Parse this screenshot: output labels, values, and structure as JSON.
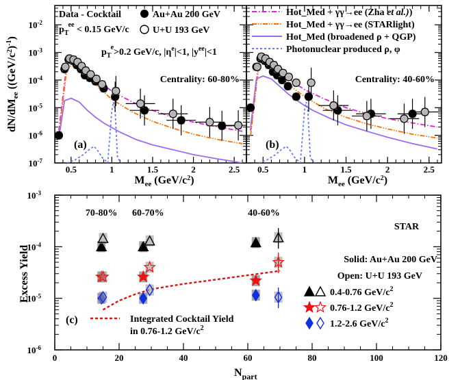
{
  "chart_data": [
    {
      "type": "scatter",
      "panel_label": "(a)",
      "xlabel": "M_ee (GeV/c^2)",
      "ylabel": "dN/dM_ee ((GeV/c^2)^-1)",
      "xlim": [
        0.3,
        2.65
      ],
      "ylim": [
        1e-07,
        0.05
      ],
      "yscale": "log",
      "xticks": [
        0.5,
        1,
        1.5,
        2,
        2.5
      ],
      "xtick_labels": [
        "0.5",
        "1",
        "1.5",
        "2",
        "2.5"
      ],
      "yticks": [
        1e-07,
        1e-06,
        1e-05,
        0.0001,
        0.001,
        0.01
      ],
      "ytick_labels": [
        "10^-7",
        "10^-6",
        "10^-5",
        "10^-4",
        "10^-3",
        "10^-2"
      ],
      "texts": {
        "t1": "Data - Cocktail",
        "t2": "p_T^ee < 0.15 GeV/c",
        "t3": "Au+Au 200 GeV",
        "t4": "U+U 193 GeV",
        "t5": "p_T^e>0.2 GeV/c, |η^e|<1, |y^ee|<1",
        "t6": "Centrality: 60-80%"
      },
      "series": [
        {
          "name": "Au+Au 200 GeV",
          "marker": "filled-circle",
          "x": [
            0.35,
            0.42,
            0.47,
            0.52,
            0.57,
            0.62,
            0.67,
            0.73,
            0.8,
            0.9,
            1.04,
            1.4,
            1.85,
            2.35
          ],
          "y": [
            1e-06,
            0.00025,
            0.00055,
            0.0005,
            0.00035,
            0.00025,
            0.00015,
            0.00012,
            9e-05,
            5e-05,
            2.5e-05,
            8e-06,
            3.5e-06,
            2.2e-06
          ]
        },
        {
          "name": "U+U 193 GeV",
          "marker": "open-circle",
          "x": [
            0.43,
            0.48,
            0.53,
            0.58,
            0.63,
            0.68,
            0.74,
            0.81,
            0.88,
            1.05,
            1.35,
            1.75,
            2.2,
            2.55
          ],
          "y": [
            0.0003,
            0.0006,
            0.00055,
            0.00045,
            0.00032,
            0.00022,
            0.00016,
            0.00011,
            7e-05,
            4e-05,
            1.4e-05,
            6e-06,
            3e-06,
            2.3e-06
          ]
        }
      ],
      "curves": [
        {
          "name": "Hot_Med + γγ→ee (Zha et al.)",
          "color": "#e020e0",
          "dash": "dashdot",
          "x": [
            0.35,
            0.45,
            0.55,
            0.7,
            0.85,
            1.0,
            1.25,
            1.5,
            1.75,
            2.0,
            2.3,
            2.6
          ],
          "y": [
            1.5e-06,
            0.00045,
            0.0005,
            0.0002,
            8e-05,
            4e-05,
            1.6e-05,
            8e-06,
            4.5e-06,
            3e-06,
            2e-06,
            1.4e-06
          ]
        },
        {
          "name": "Hot_Med + γγ→ee (STARlight)",
          "color": "#ff7000",
          "dash": "dashdotdot",
          "x": [
            0.35,
            0.45,
            0.55,
            0.7,
            0.85,
            1.0,
            1.25,
            1.5,
            1.75,
            2.0,
            2.3,
            2.6
          ],
          "y": [
            1e-06,
            0.0003,
            0.00035,
            0.00014,
            5e-05,
            2e-05,
            7e-06,
            3.2e-06,
            1.8e-06,
            1.1e-06,
            7e-07,
            5e-07
          ]
        },
        {
          "name": "Hot_Med (broadened ρ + QGP)",
          "color": "#9b6cf0",
          "dash": "solid",
          "x": [
            0.35,
            0.42,
            0.5,
            0.6,
            0.7,
            0.8,
            0.9,
            1.0,
            1.1,
            1.3,
            1.5,
            1.75,
            2.0,
            2.3,
            2.6
          ],
          "y": [
            8e-07,
            1.8e-05,
            2.2e-05,
            1.6e-05,
            8e-06,
            4.5e-06,
            2.8e-06,
            1.9e-06,
            1.3e-06,
            7e-07,
            4.5e-07,
            3e-07,
            2e-07,
            1.4e-07,
            1e-07
          ]
        },
        {
          "name": "Photonuclear produced ρ, φ",
          "color": "#5c7cf0",
          "dash": "dotted",
          "x": [
            0.45,
            0.55,
            0.65,
            0.72,
            0.78,
            0.82,
            0.88,
            0.95,
            1.0,
            1.02,
            1.04,
            1.07,
            1.12
          ],
          "y": [
            1e-07,
            1.3e-07,
            2e-07,
            3e-07,
            4e-07,
            3e-07,
            1.6e-07,
            1e-07,
            8e-06,
            1.6e-05,
            8e-06,
            1.5e-07,
            1e-07
          ]
        }
      ]
    },
    {
      "type": "scatter",
      "panel_label": "(b)",
      "xlabel": "M_ee (GeV/c^2)",
      "xlim": [
        0.3,
        2.65
      ],
      "ylim": [
        1e-07,
        0.05
      ],
      "yscale": "log",
      "xticks": [
        0.5,
        1,
        1.5,
        2,
        2.5
      ],
      "xtick_labels": [
        "0.5",
        "1",
        "1.5",
        "2",
        "2.5"
      ],
      "texts": {
        "t6": "Centrality: 40-60%"
      },
      "series": [
        {
          "name": "Au+Au 200 GeV",
          "marker": "filled-circle",
          "x": [
            0.35,
            0.42,
            0.47,
            0.52,
            0.57,
            0.62,
            0.67,
            0.73,
            0.8,
            0.9,
            1.05,
            1.4,
            1.8,
            2.3
          ],
          "y": [
            1e-05,
            0.0003,
            0.0006,
            0.0005,
            0.00035,
            0.0002,
            0.00015,
            0.0001,
            6e-05,
            2.5e-05,
            2.5e-05,
            8e-06,
            6e-06,
            6e-06
          ]
        },
        {
          "name": "U+U 193 GeV",
          "marker": "open-circle",
          "x": [
            0.43,
            0.48,
            0.53,
            0.58,
            0.63,
            0.68,
            0.74,
            0.81,
            0.9,
            1.08,
            1.35,
            1.75,
            2.2,
            2.45
          ],
          "y": [
            0.0003,
            0.0007,
            0.0006,
            0.00045,
            0.00035,
            0.00025,
            0.00018,
            0.00013,
            8e-05,
            8e-05,
            1.2e-05,
            5e-06,
            4e-06,
            7e-06
          ]
        }
      ],
      "curves": [
        {
          "name": "Hot_Med + γγ→ee (Zha et al.)",
          "color": "#e020e0",
          "dash": "dashdot",
          "x": [
            0.35,
            0.45,
            0.55,
            0.7,
            0.85,
            1.0,
            1.25,
            1.5,
            1.75,
            2.0,
            2.3,
            2.6
          ],
          "y": [
            1.5e-06,
            0.0005,
            0.00055,
            0.00022,
            9e-05,
            4.5e-05,
            2e-05,
            1e-05,
            6e-06,
            4e-06,
            2.8e-06,
            2e-06
          ]
        },
        {
          "name": "Hot_Med + γγ→ee (STARlight)",
          "color": "#ff7000",
          "dash": "dashdotdot",
          "x": [
            0.35,
            0.45,
            0.55,
            0.7,
            0.85,
            1.0,
            1.25,
            1.5,
            1.75,
            2.0,
            2.3,
            2.6
          ],
          "y": [
            1e-06,
            0.00035,
            0.0004,
            0.00015,
            5.5e-05,
            2.5e-05,
            9e-06,
            4.5e-06,
            2.6e-06,
            1.7e-06,
            1.1e-06,
            8e-07
          ]
        },
        {
          "name": "Hot_Med (broadened ρ + QGP)",
          "color": "#9b6cf0",
          "dash": "solid",
          "x": [
            0.35,
            0.42,
            0.5,
            0.6,
            0.7,
            0.8,
            0.9,
            1.0,
            1.1,
            1.3,
            1.5,
            1.75,
            2.0,
            2.3,
            2.6
          ],
          "y": [
            2e-06,
            0.00011,
            0.00014,
            0.00011,
            6e-05,
            3.2e-05,
            1.9e-05,
            1.2e-05,
            8e-06,
            4.2e-06,
            2.4e-06,
            1.4e-06,
            8.5e-07,
            5e-07,
            3.2e-07
          ]
        },
        {
          "name": "Photonuclear produced ρ, φ",
          "color": "#5c7cf0",
          "dash": "dotted",
          "x": [
            0.45,
            0.55,
            0.65,
            0.72,
            0.78,
            0.82,
            0.88,
            0.95,
            1.0,
            1.02,
            1.04,
            1.07,
            1.12
          ],
          "y": [
            1e-07,
            1.3e-07,
            2e-07,
            3e-07,
            4e-07,
            3e-07,
            1.6e-07,
            1e-07,
            8e-06,
            1.6e-05,
            8e-06,
            1.5e-07,
            1e-07
          ]
        }
      ],
      "legend": [
        {
          "label": "Hot_Med + γγ→ee (Zha",
          "label2": "et al.)",
          "label3": ")",
          "color": "#e020e0",
          "dash": "dashdot"
        },
        {
          "label": "Hot_Med + γγ→ee (STARlight)",
          "color": "#ff7000",
          "dash": "dashdotdot"
        },
        {
          "label": "Hot_Med (broadened ρ + QGP)",
          "color": "#9b6cf0",
          "dash": "solid"
        },
        {
          "label": "Photonuclear produced  ρ,  φ",
          "color": "#5c7cf0",
          "dash": "dotted"
        }
      ]
    },
    {
      "type": "scatter",
      "panel_label": "(c)",
      "xlabel": "N_part",
      "ylabel": "Excess Yield",
      "xlim": [
        0,
        120
      ],
      "ylim": [
        1e-06,
        0.001
      ],
      "yscale": "log",
      "xticks": [
        0,
        20,
        40,
        60,
        80,
        100,
        120
      ],
      "xtick_labels": [
        "0",
        "20",
        "40",
        "60",
        "80",
        "100",
        "120"
      ],
      "yticks": [
        1e-06,
        1e-05,
        0.0001,
        0.001
      ],
      "ytick_labels": [
        "10^-6",
        "10^-5",
        "10^-4",
        "10^-3"
      ],
      "centrality_labels": [
        "70-80%",
        "60-70%",
        "40-60%"
      ],
      "texts": {
        "star": "STAR",
        "solid": "Solid: Au+Au 200 GeV",
        "open": "Open: U+U 193 GeV",
        "l1": "0.4-0.76 GeV/c^2",
        "l2": "0.76-1.2 GeV/c^2",
        "l3": "1.2-2.6  GeV/c^2",
        "cocktail1": "Integrated Cocktail Yield",
        "cocktail2": "in 0.76-1.2 GeV/c^2"
      },
      "series": [
        {
          "name": "0.4-0.76 GeV/c^2",
          "marker": "triangle",
          "color": "#000000",
          "x_solid": [
            14.5,
            27.5,
            62.5
          ],
          "y_solid": [
            0.0001,
            0.0001,
            0.00012
          ],
          "x_open": [
            15.0,
            29.5,
            69.5
          ],
          "y_open": [
            0.000145,
            0.00013,
            0.00015
          ]
        },
        {
          "name": "0.76-1.2 GeV/c^2",
          "marker": "star",
          "color": "#ee1111",
          "x_solid": [
            14.5,
            27.5,
            62.5
          ],
          "y_solid": [
            2.6e-05,
            2.6e-05,
            2.2e-05
          ],
          "x_open": [
            15.0,
            29.5,
            69.5
          ],
          "y_open": [
            2.6e-05,
            4e-05,
            5e-05
          ]
        },
        {
          "name": "1.2-2.6 GeV/c^2",
          "marker": "diamond",
          "color": "#1030e0",
          "x_solid": [
            14.5,
            27.5,
            62.5
          ],
          "y_solid": [
            1e-05,
            1e-05,
            1.15e-05
          ],
          "x_open": [
            15.0,
            29.5,
            69.5
          ],
          "y_open": [
            1.05e-05,
            1.45e-05,
            1.05e-05
          ]
        }
      ],
      "cocktail_curve": {
        "color": "#dd1111",
        "x": [
          15,
          20,
          25,
          30,
          40,
          50,
          60,
          70
        ],
        "y": [
          6e-06,
          9e-06,
          1.2e-05,
          1.5e-05,
          1.9e-05,
          2.3e-05,
          2.8e-05,
          3.4e-05
        ]
      }
    }
  ]
}
